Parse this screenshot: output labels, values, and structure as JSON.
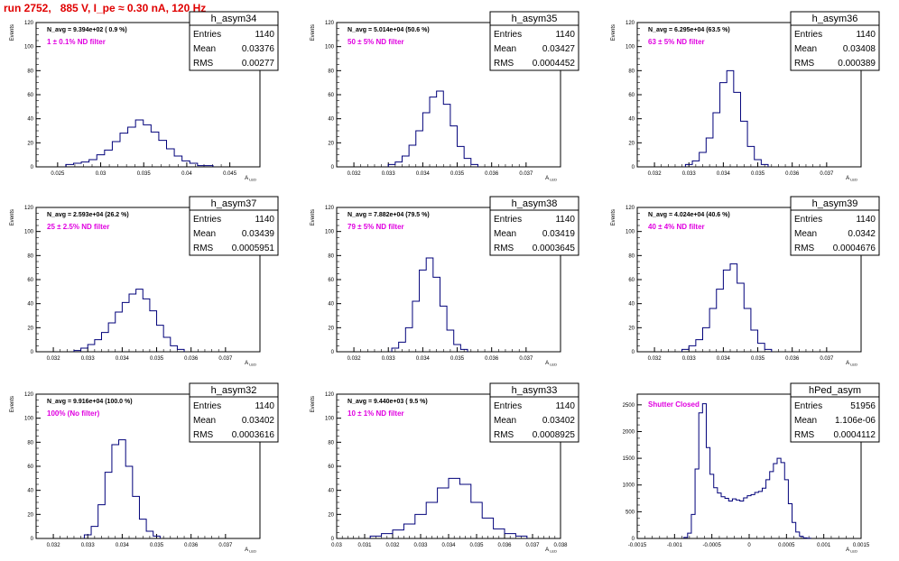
{
  "title": "run 2752,   885 V, I_pe ≈ 0.30 nA, 120 Hz",
  "colors": {
    "histogram": "#00007a",
    "title": "#e00000",
    "annotation": "#e000e0"
  },
  "chart_data": [
    {
      "type": "histogram",
      "name": "h_asym34",
      "xlabel": "A_LED",
      "ylabel": "Events",
      "navg": "N_avg = 9.394e+02 ( 0.9 %)",
      "filter": "1 ± 0.1% ND filter",
      "stats": {
        "Entries": "1140",
        "Mean": "0.03376",
        "RMS": "0.00277"
      },
      "xlim": [
        0.0225,
        0.0485
      ],
      "ylim": [
        0,
        120
      ],
      "xticks": [
        "0.025",
        "0.03",
        "0.035",
        "0.04",
        "0.045"
      ],
      "xtick_vals": [
        0.025,
        0.03,
        0.035,
        0.04,
        0.045
      ],
      "yticks": [
        0,
        20,
        40,
        60,
        80,
        100,
        120
      ],
      "bins_x": [
        0.0264,
        0.0273,
        0.0282,
        0.0291,
        0.03,
        0.0309,
        0.0318,
        0.0327,
        0.0336,
        0.0345,
        0.0354,
        0.0363,
        0.0372,
        0.0381,
        0.039,
        0.0399,
        0.0408,
        0.0417,
        0.0426
      ],
      "bins_y": [
        2,
        3,
        4,
        6,
        10,
        14,
        21,
        28,
        33,
        39,
        35,
        29,
        22,
        15,
        9,
        5,
        3,
        1,
        1
      ],
      "bin_width": 0.0009
    },
    {
      "type": "histogram",
      "name": "h_asym35",
      "xlabel": "A_LED",
      "ylabel": "Events",
      "navg": "N_avg = 5.014e+04 (50.6 %)",
      "filter": "50 ± 5% ND filter",
      "stats": {
        "Entries": "1140",
        "Mean": "0.03427",
        "RMS": "0.0004452"
      },
      "xlim": [
        0.0315,
        0.038
      ],
      "ylim": [
        0,
        120
      ],
      "xticks": [
        "0.032",
        "0.033",
        "0.034",
        "0.035",
        "0.036",
        "0.037"
      ],
      "xtick_vals": [
        0.032,
        0.033,
        0.034,
        0.035,
        0.036,
        0.037
      ],
      "yticks": [
        0,
        20,
        40,
        60,
        80,
        100,
        120
      ],
      "bins_x": [
        0.0331,
        0.0333,
        0.0335,
        0.0337,
        0.0339,
        0.0341,
        0.0343,
        0.0345,
        0.0347,
        0.0349,
        0.0351,
        0.0353,
        0.0355
      ],
      "bins_y": [
        2,
        4,
        9,
        18,
        30,
        45,
        58,
        63,
        52,
        34,
        17,
        7,
        2
      ],
      "bin_width": 0.0002
    },
    {
      "type": "histogram",
      "name": "h_asym36",
      "xlabel": "A_LED",
      "ylabel": "Events",
      "navg": "N_avg = 6.295e+04 (63.5 %)",
      "filter": "63 ± 5% ND filter",
      "stats": {
        "Entries": "1140",
        "Mean": "0.03408",
        "RMS": "0.000389"
      },
      "xlim": [
        0.0315,
        0.038
      ],
      "ylim": [
        0,
        120
      ],
      "xticks": [
        "0.032",
        "0.033",
        "0.034",
        "0.035",
        "0.036",
        "0.037"
      ],
      "xtick_vals": [
        0.032,
        0.033,
        0.034,
        0.035,
        0.036,
        0.037
      ],
      "yticks": [
        0,
        20,
        40,
        60,
        80,
        100,
        120
      ],
      "bins_x": [
        0.033,
        0.0332,
        0.0334,
        0.0336,
        0.0338,
        0.034,
        0.0342,
        0.0344,
        0.0346,
        0.0348,
        0.035,
        0.0352
      ],
      "bins_y": [
        2,
        5,
        12,
        24,
        45,
        70,
        80,
        62,
        38,
        17,
        6,
        2
      ],
      "bin_width": 0.0002
    },
    {
      "type": "histogram",
      "name": "h_asym37",
      "xlabel": "A_LED",
      "ylabel": "Events",
      "navg": "N_avg = 2.593e+04 (26.2 %)",
      "filter": "25 ± 2.5% ND filter",
      "stats": {
        "Entries": "1140",
        "Mean": "0.03439",
        "RMS": "0.0005951"
      },
      "xlim": [
        0.0315,
        0.038
      ],
      "ylim": [
        0,
        120
      ],
      "xticks": [
        "0.032",
        "0.033",
        "0.034",
        "0.035",
        "0.036",
        "0.037"
      ],
      "xtick_vals": [
        0.032,
        0.033,
        0.034,
        0.035,
        0.036,
        0.037
      ],
      "yticks": [
        0,
        20,
        40,
        60,
        80,
        100,
        120
      ],
      "bins_x": [
        0.0327,
        0.0329,
        0.0331,
        0.0333,
        0.0335,
        0.0337,
        0.0339,
        0.0341,
        0.0343,
        0.0345,
        0.0347,
        0.0349,
        0.0351,
        0.0353,
        0.0355,
        0.0357
      ],
      "bins_y": [
        1,
        3,
        6,
        10,
        16,
        24,
        33,
        41,
        48,
        52,
        44,
        34,
        22,
        12,
        5,
        2
      ],
      "bin_width": 0.0002
    },
    {
      "type": "histogram",
      "name": "h_asym38",
      "xlabel": "A_LED",
      "ylabel": "Events",
      "navg": "N_avg = 7.882e+04 (79.5 %)",
      "filter": "79 ± 5% ND filter",
      "stats": {
        "Entries": "1140",
        "Mean": "0.03419",
        "RMS": "0.0003645"
      },
      "xlim": [
        0.0315,
        0.038
      ],
      "ylim": [
        0,
        120
      ],
      "xticks": [
        "0.032",
        "0.033",
        "0.034",
        "0.035",
        "0.036",
        "0.037"
      ],
      "xtick_vals": [
        0.032,
        0.033,
        0.034,
        0.035,
        0.036,
        0.037
      ],
      "yticks": [
        0,
        20,
        40,
        60,
        80,
        100,
        120
      ],
      "bins_x": [
        0.0332,
        0.0334,
        0.0336,
        0.0338,
        0.034,
        0.0342,
        0.0344,
        0.0346,
        0.0348,
        0.035,
        0.0352
      ],
      "bins_y": [
        3,
        8,
        20,
        42,
        68,
        78,
        62,
        38,
        18,
        6,
        2
      ],
      "bin_width": 0.0002
    },
    {
      "type": "histogram",
      "name": "h_asym39",
      "xlabel": "A_LED",
      "ylabel": "Events",
      "navg": "N_avg = 4.024e+04 (40.6 %)",
      "filter": "40 ± 4% ND filter",
      "stats": {
        "Entries": "1140",
        "Mean": "0.0342",
        "RMS": "0.0004676"
      },
      "xlim": [
        0.0315,
        0.038
      ],
      "ylim": [
        0,
        120
      ],
      "xticks": [
        "0.032",
        "0.033",
        "0.034",
        "0.035",
        "0.036",
        "0.037"
      ],
      "xtick_vals": [
        0.032,
        0.033,
        0.034,
        0.035,
        0.036,
        0.037
      ],
      "yticks": [
        0,
        20,
        40,
        60,
        80,
        100,
        120
      ],
      "bins_x": [
        0.0329,
        0.0331,
        0.0333,
        0.0335,
        0.0337,
        0.0339,
        0.0341,
        0.0343,
        0.0345,
        0.0347,
        0.0349,
        0.0351,
        0.0353
      ],
      "bins_y": [
        2,
        5,
        10,
        20,
        36,
        52,
        68,
        73,
        57,
        36,
        18,
        7,
        2
      ],
      "bin_width": 0.0002
    },
    {
      "type": "histogram",
      "name": "h_asym32",
      "xlabel": "A_LED",
      "ylabel": "Events",
      "navg": "N_avg = 9.916e+04 (100.0 %)",
      "filter": "100% (No filter)",
      "stats": {
        "Entries": "1140",
        "Mean": "0.03402",
        "RMS": "0.0003616"
      },
      "xlim": [
        0.0315,
        0.038
      ],
      "ylim": [
        0,
        120
      ],
      "xticks": [
        "0.032",
        "0.033",
        "0.034",
        "0.035",
        "0.036",
        "0.037"
      ],
      "xtick_vals": [
        0.032,
        0.033,
        0.034,
        0.035,
        0.036,
        0.037
      ],
      "yticks": [
        0,
        20,
        40,
        60,
        80,
        100,
        120
      ],
      "bins_x": [
        0.033,
        0.0332,
        0.0334,
        0.0336,
        0.0338,
        0.034,
        0.0342,
        0.0344,
        0.0346,
        0.0348,
        0.035
      ],
      "bins_y": [
        3,
        10,
        28,
        55,
        78,
        82,
        60,
        35,
        16,
        6,
        2
      ],
      "bin_width": 0.0002
    },
    {
      "type": "histogram",
      "name": "h_asym33",
      "xlabel": "A_LED",
      "ylabel": "Events",
      "navg": "N_avg = 9.440e+03 ( 9.5 %)",
      "filter": "10 ± 1% ND filter",
      "stats": {
        "Entries": "1140",
        "Mean": "0.03402",
        "RMS": "0.0008925"
      },
      "xlim": [
        0.03,
        0.038
      ],
      "ylim": [
        0,
        120
      ],
      "xticks": [
        "0.03",
        "0.031",
        "0.032",
        "0.033",
        "0.034",
        "0.035",
        "0.036",
        "0.037",
        "0.038"
      ],
      "xtick_vals": [
        0.03,
        0.031,
        0.032,
        0.033,
        0.034,
        0.035,
        0.036,
        0.037,
        0.038
      ],
      "yticks": [
        0,
        20,
        40,
        60,
        80,
        100,
        120
      ],
      "bins_x": [
        0.0314,
        0.0318,
        0.0322,
        0.0326,
        0.033,
        0.0334,
        0.0338,
        0.0342,
        0.0346,
        0.035,
        0.0354,
        0.0358,
        0.0362,
        0.0366
      ],
      "bins_y": [
        2,
        4,
        7,
        12,
        20,
        30,
        42,
        50,
        45,
        30,
        17,
        8,
        4,
        2
      ],
      "bin_width": 0.0004
    },
    {
      "type": "histogram",
      "name": "hPed_asym",
      "xlabel": "A_LED",
      "ylabel": "",
      "navg": "",
      "filter": "Shutter Closed",
      "stats": {
        "Entries": "51956",
        "Mean": "1.106e-06",
        "RMS": "0.0004112"
      },
      "xlim": [
        -0.0015,
        0.0015
      ],
      "ylim": [
        0,
        2700
      ],
      "xticks": [
        "-0.0015",
        "-0.001",
        "-0.0005",
        "0",
        "0.0005",
        "0.001",
        "0.0015"
      ],
      "xtick_vals": [
        -0.0015,
        -0.001,
        -0.0005,
        0,
        0.0005,
        0.001,
        0.0015
      ],
      "yticks": [
        0,
        500,
        1000,
        1500,
        2000,
        2500
      ],
      "bins_x": [
        -0.00085,
        -0.0008,
        -0.00075,
        -0.0007,
        -0.00065,
        -0.0006,
        -0.00055,
        -0.0005,
        -0.00045,
        -0.0004,
        -0.00035,
        -0.0003,
        -0.00025,
        -0.0002,
        -0.00015,
        -0.0001,
        -5e-05,
        0,
        5e-05,
        0.0001,
        0.00015,
        0.0002,
        0.00025,
        0.0003,
        0.00035,
        0.0004,
        0.00045,
        0.0005,
        0.00055,
        0.0006,
        0.00065,
        0.0007,
        0.00075,
        0.0008
      ],
      "bins_y": [
        20,
        100,
        450,
        1300,
        2350,
        2520,
        1700,
        1200,
        950,
        850,
        780,
        750,
        700,
        740,
        720,
        700,
        760,
        800,
        820,
        860,
        880,
        940,
        1100,
        1250,
        1400,
        1500,
        1420,
        1100,
        650,
        300,
        120,
        40,
        10,
        5
      ],
      "bin_width": 5e-05
    }
  ]
}
